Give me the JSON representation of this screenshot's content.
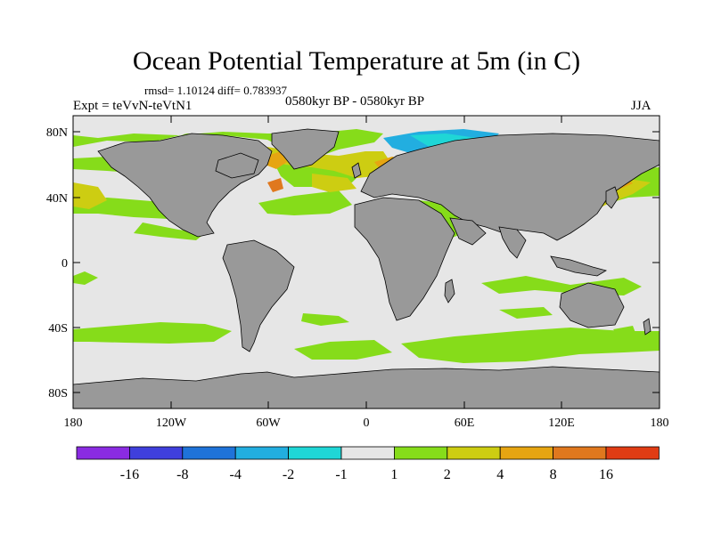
{
  "title": "Ocean Potential Temperature at 5m (in C)",
  "stats": "rmsd= 1.10124 diff= 0.783937",
  "experiment": "Expt = teVvN-teVtN1",
  "period": "0580kyr BP - 0580kyr BP",
  "season": "JJA",
  "axes": {
    "lat_ticks": [
      "80N",
      "40N",
      "0",
      "40S",
      "80S"
    ],
    "lon_ticks": [
      "180",
      "120W",
      "60W",
      "0",
      "60E",
      "120E",
      "180"
    ]
  },
  "colorbar": {
    "colors": [
      "#8a2be2",
      "#3f3fdc",
      "#1f73d9",
      "#22aee0",
      "#1fd6d6",
      "#e6e6e6",
      "#86dc1a",
      "#cdcd12",
      "#e6a512",
      "#e0781e",
      "#e03c14"
    ],
    "labels": [
      "-16",
      "-8",
      "-4",
      "-2",
      "-1",
      "1",
      "2",
      "4",
      "8",
      "16"
    ]
  },
  "colors": {
    "land": "#999999",
    "ocean_neutral": "#e6e6e6"
  }
}
